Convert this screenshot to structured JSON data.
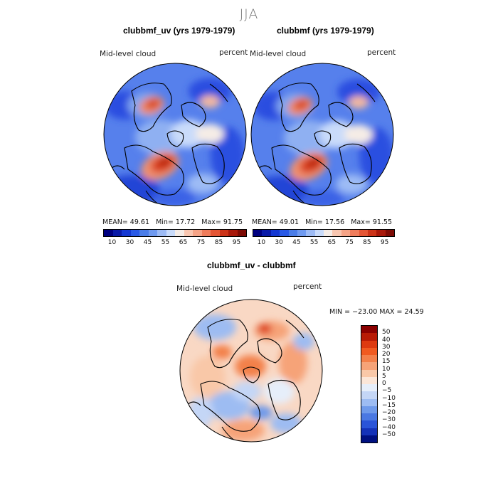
{
  "figure": {
    "season": "JJA",
    "panels": [
      {
        "title": "clubbmf_uv (yrs 1979-1979)",
        "variable": "Mid-level cloud",
        "units": "percent",
        "mean_label": "MEAN=",
        "mean": "49.61",
        "min_label": "Min=",
        "min": "17.72",
        "max_label": "Max=",
        "max": "91.75"
      },
      {
        "title": "clubbmf (yrs 1979-1979)",
        "variable": "Mid-level cloud",
        "units": "percent",
        "mean_label": "MEAN=",
        "mean": "49.01",
        "min_label": "Min=",
        "min": "17.56",
        "max_label": "Max=",
        "max": "91.55"
      },
      {
        "title": "clubbmf_uv - clubbmf",
        "variable": "Mid-level cloud",
        "units": "percent",
        "minmax_text": "MIN = −23.00 MAX =   24.59"
      }
    ]
  },
  "colorbars": {
    "absolute": {
      "tick_labels": [
        "10",
        "30",
        "45",
        "55",
        "65",
        "75",
        "85",
        "95"
      ],
      "colors": [
        "#000080",
        "#0a1aa8",
        "#1438d2",
        "#2a5ae6",
        "#4a7de8",
        "#6f9af0",
        "#9dbbf5",
        "#c9dbfa",
        "#f5ece6",
        "#f8c6b0",
        "#f5a386",
        "#ef7c5b",
        "#e45534",
        "#cc3318",
        "#a8180a",
        "#7d0a04"
      ]
    },
    "difference": {
      "tick_labels": [
        "50",
        "40",
        "30",
        "20",
        "15",
        "10",
        "5",
        "0",
        "−5",
        "−10",
        "−15",
        "−20",
        "−30",
        "−40",
        "−50"
      ],
      "colors": [
        "#8b0000",
        "#b81a05",
        "#dd3a10",
        "#f05a20",
        "#f3804a",
        "#f6a378",
        "#f9c8a8",
        "#fbe6d8",
        "#e6eefa",
        "#c4d6f6",
        "#9dbcf2",
        "#6f9aea",
        "#4a78e2",
        "#2a54d8",
        "#1432b8",
        "#001080"
      ]
    }
  }
}
